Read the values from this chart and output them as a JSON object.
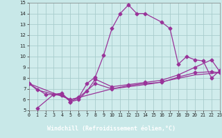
{
  "bg_color": "#c8e8e8",
  "plot_bg_color": "#d0ecec",
  "grid_color": "#a8cccc",
  "line_color": "#993399",
  "xlabel": "Windchill (Refroidissement éolien,°C)",
  "xlabel_bg": "#7744aa",
  "xlabel_fg": "#ffffff",
  "ylim": [
    5,
    15
  ],
  "xlim": [
    0,
    23
  ],
  "yticks": [
    5,
    6,
    7,
    8,
    9,
    10,
    11,
    12,
    13,
    14,
    15
  ],
  "xticks": [
    0,
    1,
    2,
    3,
    4,
    5,
    6,
    7,
    8,
    9,
    10,
    11,
    12,
    13,
    14,
    15,
    16,
    17,
    18,
    19,
    20,
    21,
    22,
    23
  ],
  "line1_x": [
    0,
    1,
    3,
    4,
    5,
    6,
    7,
    8,
    9,
    10,
    11,
    12,
    13,
    14,
    16,
    17,
    18,
    19,
    20,
    21,
    22,
    23
  ],
  "line1_y": [
    7.5,
    6.9,
    6.5,
    6.6,
    5.8,
    6.2,
    7.5,
    8.1,
    10.1,
    12.6,
    14.0,
    14.8,
    14.0,
    14.0,
    13.2,
    12.6,
    9.3,
    10.0,
    9.7,
    9.6,
    8.0,
    8.7
  ],
  "line2_x": [
    1,
    3,
    4,
    5,
    6,
    7,
    8,
    10,
    12,
    14,
    16,
    18,
    20,
    22,
    23
  ],
  "line2_y": [
    5.2,
    6.5,
    6.5,
    5.8,
    6.0,
    6.8,
    7.9,
    7.2,
    7.4,
    7.6,
    7.8,
    8.3,
    9.0,
    9.7,
    8.6
  ],
  "line3_x": [
    0,
    2,
    4,
    5,
    6,
    8,
    10,
    12,
    14,
    16,
    18,
    20,
    22,
    23
  ],
  "line3_y": [
    7.5,
    6.5,
    6.4,
    6.0,
    6.2,
    7.5,
    7.0,
    7.3,
    7.5,
    7.6,
    8.1,
    8.5,
    8.6,
    8.5
  ],
  "line4_x": [
    0,
    5,
    10,
    15,
    20,
    23
  ],
  "line4_y": [
    7.5,
    6.0,
    7.0,
    7.5,
    8.3,
    8.5
  ]
}
